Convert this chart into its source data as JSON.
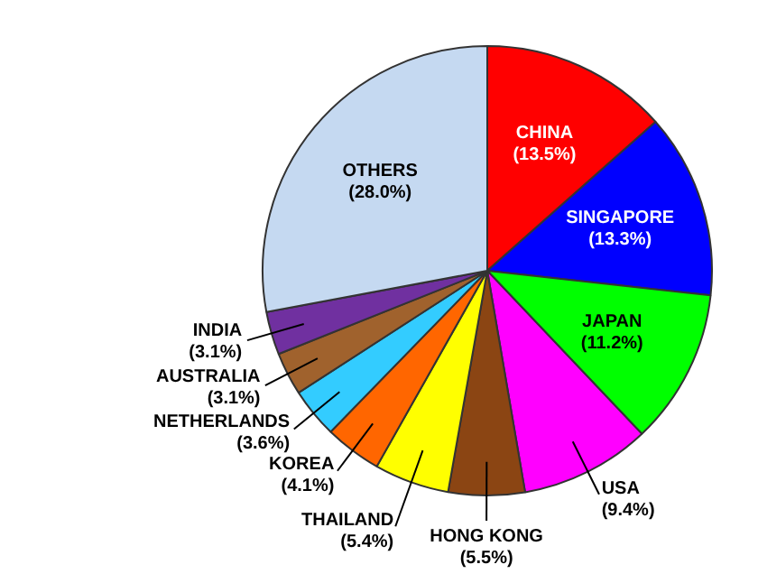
{
  "chart_data": {
    "type": "pie",
    "categories": [
      "CHINA",
      "SINGAPORE",
      "JAPAN",
      "USA",
      "HONG KONG",
      "THAILAND",
      "KOREA",
      "NETHERLANDS",
      "AUSTRALIA",
      "INDIA",
      "OTHERS"
    ],
    "values": [
      13.5,
      13.3,
      11.2,
      9.4,
      5.5,
      5.4,
      4.1,
      3.6,
      3.1,
      3.1,
      28.0
    ],
    "colors": [
      "#ff0000",
      "#0000ff",
      "#00ff00",
      "#ff00ff",
      "#8b4513",
      "#ffff00",
      "#ff6600",
      "#33ccff",
      "#a0622d",
      "#7030a0",
      "#c5d9f1"
    ],
    "value_labels": [
      "(13.5%)",
      "(13.3%)",
      "(11.2%)",
      "(9.4%)",
      "(5.5%)",
      "(5.4%)",
      "(4.1%)",
      "(3.6%)",
      "(3.1%)",
      "(3.1%)",
      "(28.0%)"
    ],
    "legend": false
  }
}
